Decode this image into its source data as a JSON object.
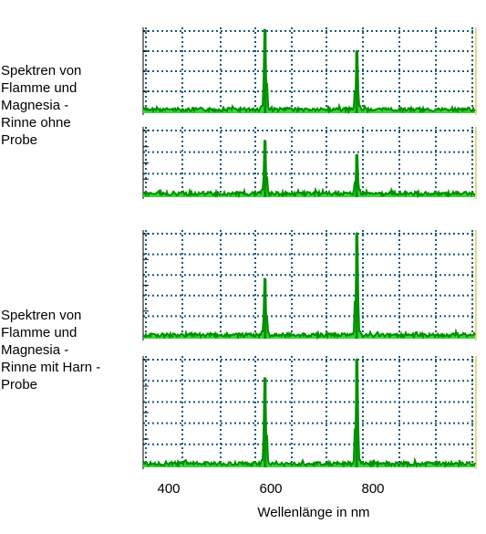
{
  "labels": {
    "group_a": "Spektren von\nFlamme und\nMagnesia -\nRinne ohne\nProbe",
    "group_b": "Spektren von\nFlamme und\nMagnesia -\nRinne mit Harn -\nProbe"
  },
  "chart_data": {
    "type": "line",
    "xlabel": "Wellenlänge in nm",
    "xlim": [
      350,
      1000
    ],
    "x_ticks": [
      400,
      600,
      800
    ],
    "grid": true,
    "colors": {
      "line": "#009000",
      "fill": "#3cd23c",
      "grid": "#1a5a78",
      "axis": "#000000",
      "edge": "#c8b400"
    },
    "panels": [
      {
        "group": "ohne Probe",
        "peaks": [
          {
            "x": 589,
            "height": 0.97
          },
          {
            "x": 768,
            "height": 0.72
          }
        ]
      },
      {
        "group": "ohne Probe",
        "peaks": [
          {
            "x": 589,
            "height": 0.8
          },
          {
            "x": 768,
            "height": 0.6
          }
        ]
      },
      {
        "group": "mit Harn-Probe",
        "peaks": [
          {
            "x": 589,
            "height": 0.55
          },
          {
            "x": 768,
            "height": 0.97
          }
        ]
      },
      {
        "group": "mit Harn-Probe",
        "peaks": [
          {
            "x": 589,
            "height": 0.8
          },
          {
            "x": 768,
            "height": 0.97
          }
        ]
      }
    ]
  }
}
